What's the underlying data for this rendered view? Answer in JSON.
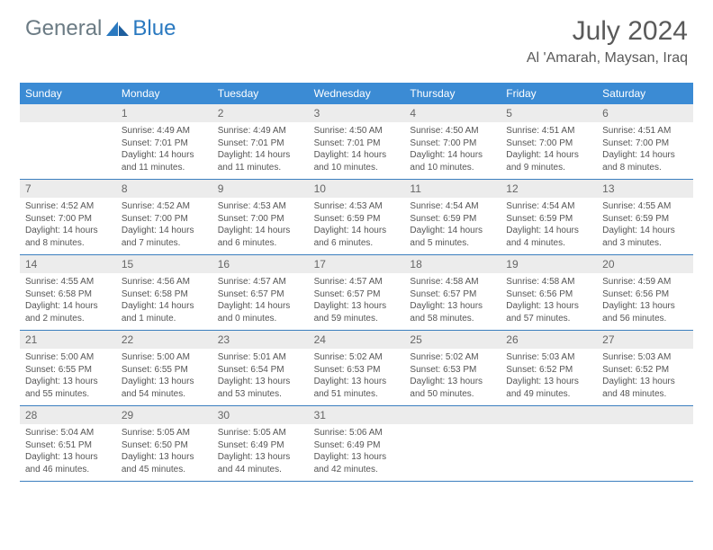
{
  "brand": {
    "part1": "General",
    "part2": "Blue"
  },
  "title": "July 2024",
  "location": "Al 'Amarah, Maysan, Iraq",
  "colors": {
    "header_bg": "#3b8bd4",
    "header_text": "#ffffff",
    "daynum_bg": "#ececec",
    "daynum_text": "#666666",
    "body_text": "#555555",
    "week_border": "#3b7fbf",
    "logo_gray": "#6b7b84",
    "logo_blue": "#2a79c0"
  },
  "day_names": [
    "Sunday",
    "Monday",
    "Tuesday",
    "Wednesday",
    "Thursday",
    "Friday",
    "Saturday"
  ],
  "weeks": [
    [
      null,
      {
        "n": "1",
        "sr": "4:49 AM",
        "ss": "7:01 PM",
        "dl": "14 hours and 11 minutes."
      },
      {
        "n": "2",
        "sr": "4:49 AM",
        "ss": "7:01 PM",
        "dl": "14 hours and 11 minutes."
      },
      {
        "n": "3",
        "sr": "4:50 AM",
        "ss": "7:01 PM",
        "dl": "14 hours and 10 minutes."
      },
      {
        "n": "4",
        "sr": "4:50 AM",
        "ss": "7:00 PM",
        "dl": "14 hours and 10 minutes."
      },
      {
        "n": "5",
        "sr": "4:51 AM",
        "ss": "7:00 PM",
        "dl": "14 hours and 9 minutes."
      },
      {
        "n": "6",
        "sr": "4:51 AM",
        "ss": "7:00 PM",
        "dl": "14 hours and 8 minutes."
      }
    ],
    [
      {
        "n": "7",
        "sr": "4:52 AM",
        "ss": "7:00 PM",
        "dl": "14 hours and 8 minutes."
      },
      {
        "n": "8",
        "sr": "4:52 AM",
        "ss": "7:00 PM",
        "dl": "14 hours and 7 minutes."
      },
      {
        "n": "9",
        "sr": "4:53 AM",
        "ss": "7:00 PM",
        "dl": "14 hours and 6 minutes."
      },
      {
        "n": "10",
        "sr": "4:53 AM",
        "ss": "6:59 PM",
        "dl": "14 hours and 6 minutes."
      },
      {
        "n": "11",
        "sr": "4:54 AM",
        "ss": "6:59 PM",
        "dl": "14 hours and 5 minutes."
      },
      {
        "n": "12",
        "sr": "4:54 AM",
        "ss": "6:59 PM",
        "dl": "14 hours and 4 minutes."
      },
      {
        "n": "13",
        "sr": "4:55 AM",
        "ss": "6:59 PM",
        "dl": "14 hours and 3 minutes."
      }
    ],
    [
      {
        "n": "14",
        "sr": "4:55 AM",
        "ss": "6:58 PM",
        "dl": "14 hours and 2 minutes."
      },
      {
        "n": "15",
        "sr": "4:56 AM",
        "ss": "6:58 PM",
        "dl": "14 hours and 1 minute."
      },
      {
        "n": "16",
        "sr": "4:57 AM",
        "ss": "6:57 PM",
        "dl": "14 hours and 0 minutes."
      },
      {
        "n": "17",
        "sr": "4:57 AM",
        "ss": "6:57 PM",
        "dl": "13 hours and 59 minutes."
      },
      {
        "n": "18",
        "sr": "4:58 AM",
        "ss": "6:57 PM",
        "dl": "13 hours and 58 minutes."
      },
      {
        "n": "19",
        "sr": "4:58 AM",
        "ss": "6:56 PM",
        "dl": "13 hours and 57 minutes."
      },
      {
        "n": "20",
        "sr": "4:59 AM",
        "ss": "6:56 PM",
        "dl": "13 hours and 56 minutes."
      }
    ],
    [
      {
        "n": "21",
        "sr": "5:00 AM",
        "ss": "6:55 PM",
        "dl": "13 hours and 55 minutes."
      },
      {
        "n": "22",
        "sr": "5:00 AM",
        "ss": "6:55 PM",
        "dl": "13 hours and 54 minutes."
      },
      {
        "n": "23",
        "sr": "5:01 AM",
        "ss": "6:54 PM",
        "dl": "13 hours and 53 minutes."
      },
      {
        "n": "24",
        "sr": "5:02 AM",
        "ss": "6:53 PM",
        "dl": "13 hours and 51 minutes."
      },
      {
        "n": "25",
        "sr": "5:02 AM",
        "ss": "6:53 PM",
        "dl": "13 hours and 50 minutes."
      },
      {
        "n": "26",
        "sr": "5:03 AM",
        "ss": "6:52 PM",
        "dl": "13 hours and 49 minutes."
      },
      {
        "n": "27",
        "sr": "5:03 AM",
        "ss": "6:52 PM",
        "dl": "13 hours and 48 minutes."
      }
    ],
    [
      {
        "n": "28",
        "sr": "5:04 AM",
        "ss": "6:51 PM",
        "dl": "13 hours and 46 minutes."
      },
      {
        "n": "29",
        "sr": "5:05 AM",
        "ss": "6:50 PM",
        "dl": "13 hours and 45 minutes."
      },
      {
        "n": "30",
        "sr": "5:05 AM",
        "ss": "6:49 PM",
        "dl": "13 hours and 44 minutes."
      },
      {
        "n": "31",
        "sr": "5:06 AM",
        "ss": "6:49 PM",
        "dl": "13 hours and 42 minutes."
      },
      null,
      null,
      null
    ]
  ],
  "labels": {
    "sunrise": "Sunrise:",
    "sunset": "Sunset:",
    "daylight": "Daylight:"
  }
}
